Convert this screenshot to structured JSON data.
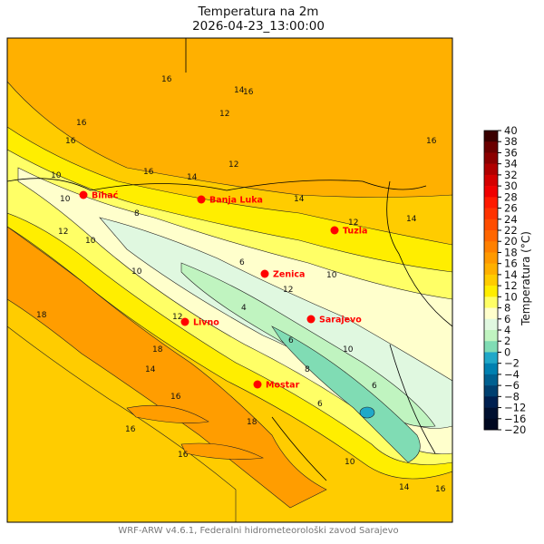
{
  "title": "Temperatura na 2m",
  "subtitle": "2026-04-23_13:00:00",
  "footer": "WRF-ARW v4.6.1, Federalni hidrometeorološki zavod Sarajevo",
  "colorbar": {
    "label": "Temperatura (°C)",
    "ticks": [
      "40",
      "38",
      "36",
      "34",
      "32",
      "30",
      "28",
      "26",
      "24",
      "22",
      "20",
      "18",
      "16",
      "14",
      "12",
      "10",
      "8",
      "6",
      "4",
      "2",
      "0",
      "−2",
      "−4",
      "−6",
      "−8",
      "−12",
      "−16",
      "−20"
    ],
    "colors": [
      "#3a0000",
      "#6a0000",
      "#8b0000",
      "#b00000",
      "#d40000",
      "#f00000",
      "#ff1a00",
      "#ff3300",
      "#ff4d00",
      "#ff6600",
      "#ff8000",
      "#ff9900",
      "#ffb000",
      "#ffcc00",
      "#ffee00",
      "#ffff66",
      "#ffffcc",
      "#e0f8e0",
      "#c0f4c0",
      "#80dcb4",
      "#20a8c8",
      "#0080b0",
      "#006090",
      "#004070",
      "#002050",
      "#001030",
      "#000820"
    ]
  },
  "cities": [
    {
      "name": "Bihać"
    },
    {
      "name": "Banja Luka"
    },
    {
      "name": "Tuzla"
    },
    {
      "name": "Zenica"
    },
    {
      "name": "Sarajevo"
    },
    {
      "name": "Livno"
    },
    {
      "name": "Mostar"
    }
  ],
  "contour_labels": [
    "16",
    "16",
    "14",
    "16",
    "12",
    "16",
    "16",
    "16",
    "12",
    "14",
    "14",
    "10",
    "10",
    "12",
    "10",
    "14",
    "12",
    "8",
    "6",
    "10",
    "12",
    "12",
    "10",
    "6",
    "8",
    "10",
    "4",
    "6",
    "18",
    "18",
    "16",
    "14",
    "16",
    "18",
    "16",
    "10",
    "6",
    "14",
    "16"
  ],
  "city_color": "#ff0000"
}
